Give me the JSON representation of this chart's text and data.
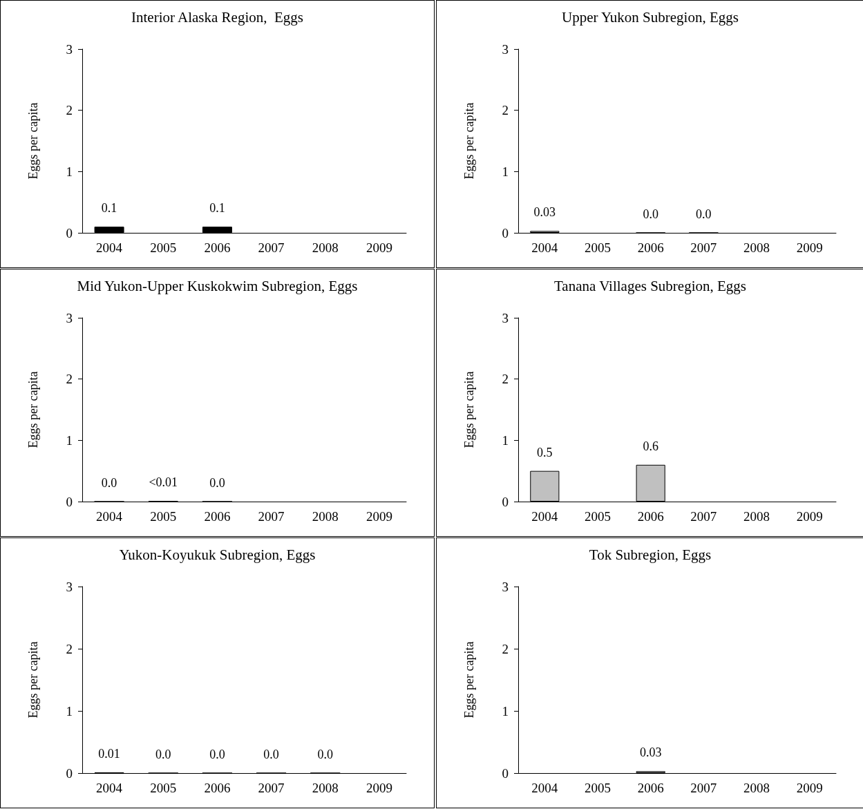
{
  "chart_data": [
    {
      "type": "bar",
      "title": "Interior Alaska Region,  Eggs",
      "ylabel": "Eggs per capita",
      "categories": [
        "2004",
        "2005",
        "2006",
        "2007",
        "2008",
        "2009"
      ],
      "values": [
        0.1,
        null,
        0.1,
        null,
        null,
        null
      ],
      "value_labels": [
        "0.1",
        null,
        "0.1",
        null,
        null,
        null
      ],
      "color": "#000000",
      "ylim": [
        0,
        3
      ],
      "yticks": [
        0,
        1,
        2,
        3
      ]
    },
    {
      "type": "bar",
      "title": "Upper Yukon Subregion, Eggs",
      "ylabel": "Eggs per capita",
      "categories": [
        "2004",
        "2005",
        "2006",
        "2007",
        "2008",
        "2009"
      ],
      "values": [
        0.03,
        null,
        0,
        0,
        null,
        null
      ],
      "value_labels": [
        "0.03",
        null,
        "0.0",
        "0.0",
        null,
        null
      ],
      "color": "#c0c0c0",
      "ylim": [
        0,
        3
      ],
      "yticks": [
        0,
        1,
        2,
        3
      ]
    },
    {
      "type": "bar",
      "title": "Mid Yukon-Upper Kuskokwim Subregion, Eggs",
      "ylabel": "Eggs per capita",
      "categories": [
        "2004",
        "2005",
        "2006",
        "2007",
        "2008",
        "2009"
      ],
      "values": [
        0,
        0.01,
        0,
        null,
        null,
        null
      ],
      "value_labels": [
        "0.0",
        "<0.01",
        "0.0",
        null,
        null,
        null
      ],
      "color": "#c0c0c0",
      "ylim": [
        0,
        3
      ],
      "yticks": [
        0,
        1,
        2,
        3
      ]
    },
    {
      "type": "bar",
      "title": "Tanana Villages Subregion, Eggs",
      "ylabel": "Eggs per capita",
      "categories": [
        "2004",
        "2005",
        "2006",
        "2007",
        "2008",
        "2009"
      ],
      "values": [
        0.5,
        null,
        0.6,
        null,
        null,
        null
      ],
      "value_labels": [
        "0.5",
        null,
        "0.6",
        null,
        null,
        null
      ],
      "color": "#c0c0c0",
      "ylim": [
        0,
        3
      ],
      "yticks": [
        0,
        1,
        2,
        3
      ]
    },
    {
      "type": "bar",
      "title": "Yukon-Koyukuk Subregion, Eggs",
      "ylabel": "Eggs per capita",
      "categories": [
        "2004",
        "2005",
        "2006",
        "2007",
        "2008",
        "2009"
      ],
      "values": [
        0.01,
        0,
        0,
        0,
        0,
        null
      ],
      "value_labels": [
        "0.01",
        "0.0",
        "0.0",
        "0.0",
        "0.0",
        null
      ],
      "color": "#c0c0c0",
      "ylim": [
        0,
        3
      ],
      "yticks": [
        0,
        1,
        2,
        3
      ]
    },
    {
      "type": "bar",
      "title": "Tok Subregion, Eggs",
      "ylabel": "Eggs per capita",
      "categories": [
        "2004",
        "2005",
        "2006",
        "2007",
        "2008",
        "2009"
      ],
      "values": [
        null,
        null,
        0.03,
        null,
        null,
        null
      ],
      "value_labels": [
        null,
        null,
        "0.03",
        null,
        null,
        null
      ],
      "color": "#c0c0c0",
      "ylim": [
        0,
        3
      ],
      "yticks": [
        0,
        1,
        2,
        3
      ]
    }
  ]
}
